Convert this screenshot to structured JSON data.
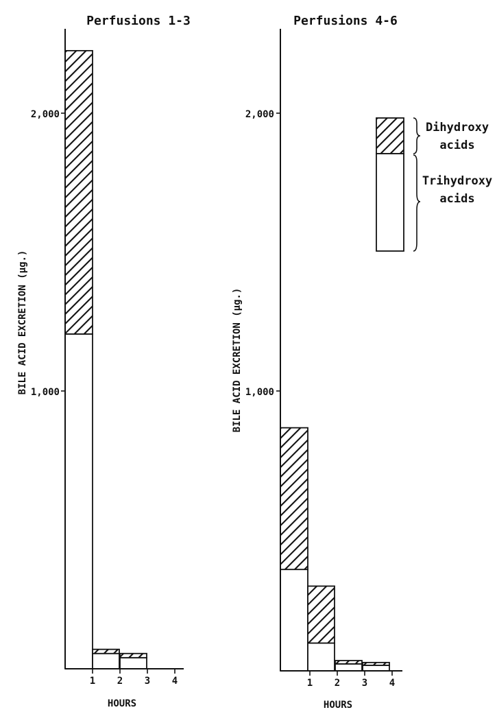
{
  "chart_data": [
    {
      "type": "bar",
      "stacked": true,
      "title": "Perfusions 1-3",
      "xlabel": "HOURS",
      "ylabel": "BILE ACID EXCRETION (μg.)",
      "x_ticks": [
        "1",
        "2",
        "3",
        "4"
      ],
      "y_ticks": [
        "1,000",
        "2,000"
      ],
      "ylim": [
        0,
        2500
      ],
      "categories": [
        "0-1",
        "1-2",
        "2-3",
        "3-4"
      ],
      "series": [
        {
          "name": "Trihydroxy acids",
          "values": [
            1205,
            55,
            40,
            0
          ]
        },
        {
          "name": "Dihydroxy acids",
          "values": [
            1020,
            15,
            15,
            0
          ]
        }
      ]
    },
    {
      "type": "bar",
      "stacked": true,
      "title": "Perfusions 4-6",
      "xlabel": "HOURS",
      "ylabel": "BILE ACID EXCRETION (μg.)",
      "x_ticks": [
        "1",
        "2",
        "3",
        "4"
      ],
      "y_ticks": [
        "1,000",
        "2,000"
      ],
      "ylim": [
        0,
        2500
      ],
      "categories": [
        "0-1",
        "1-2",
        "2-3",
        "3-4"
      ],
      "series": [
        {
          "name": "Trihydroxy acids",
          "values": [
            365,
            100,
            25,
            20
          ]
        },
        {
          "name": "Dihydroxy acids",
          "values": [
            510,
            205,
            12,
            10
          ]
        }
      ],
      "legend": {
        "items": [
          {
            "label": [
              "Dihydroxy",
              "acids"
            ],
            "pattern": "hatched"
          },
          {
            "label": [
              "Trihydroxy",
              "acids"
            ],
            "pattern": "open"
          }
        ]
      }
    }
  ]
}
